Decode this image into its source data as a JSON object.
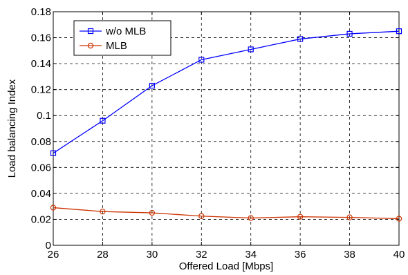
{
  "chart_data": {
    "type": "line",
    "title": "",
    "xlabel": "Offered Load [Mbps]",
    "ylabel": "Load balancing Index",
    "x": [
      26,
      28,
      30,
      32,
      34,
      36,
      38,
      40
    ],
    "xlim": [
      26,
      40
    ],
    "ylim": [
      0,
      0.18
    ],
    "xticks": [
      "26",
      "28",
      "30",
      "32",
      "34",
      "36",
      "38",
      "40"
    ],
    "yticks": [
      "0",
      "0.02",
      "0.04",
      "0.06",
      "0.08",
      "0.1",
      "0.12",
      "0.14",
      "0.16",
      "0.18"
    ],
    "grid": true,
    "legend_position": "top-left",
    "series": [
      {
        "name": "w/o MLB",
        "color": "#0000ff",
        "marker": "square",
        "values": [
          0.071,
          0.096,
          0.123,
          0.143,
          0.151,
          0.159,
          0.163,
          0.165
        ]
      },
      {
        "name": "MLB",
        "color": "#cc3300",
        "marker": "circle",
        "values": [
          0.029,
          0.026,
          0.025,
          0.0225,
          0.021,
          0.022,
          0.0215,
          0.0205
        ]
      }
    ]
  }
}
